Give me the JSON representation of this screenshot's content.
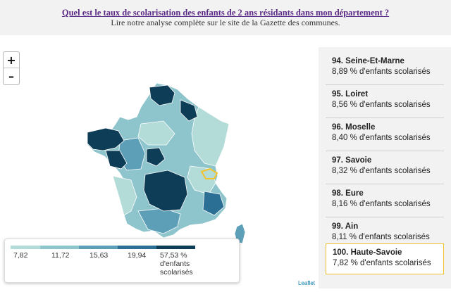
{
  "header": {
    "question": "Quel est le taux de scolarisation des enfants de 2 ans résidants dans mon département ?",
    "subtitle": "Lire notre analyse complète sur le site de la Gazette des communes."
  },
  "zoom": {
    "in_label": "+",
    "out_label": "–"
  },
  "legend": {
    "breaks": [
      "7,82",
      "11,72",
      "15,63",
      "19,94"
    ],
    "last_label": "57,53 %",
    "unit_line1": "d'enfants",
    "unit_line2": "scolarisés",
    "colors": [
      "#b3dcd8",
      "#8ec4cb",
      "#5e9fb8",
      "#2c6f94",
      "#0e3d57"
    ]
  },
  "attribution": "Leaflet",
  "ranking": [
    {
      "name": "94. Seine-Et-Marne",
      "value": "8,89 % d'enfants scolarisés",
      "active": false
    },
    {
      "name": "95. Loiret",
      "value": "8,56 % d'enfants scolarisés",
      "active": false
    },
    {
      "name": "96. Moselle",
      "value": "8,40 % d'enfants scolarisés",
      "active": false
    },
    {
      "name": "97. Savoie",
      "value": "8,32 % d'enfants scolarisés",
      "active": false
    },
    {
      "name": "98. Eure",
      "value": "8,16 % d'enfants scolarisés",
      "active": false
    },
    {
      "name": "99. Ain",
      "value": "8,11 % d'enfants scolarisés",
      "active": false
    },
    {
      "name": "100. Haute-Savoie",
      "value": "7,82 % d'enfants scolarisés",
      "active": true
    }
  ],
  "colors": {
    "highlight": "#f2c230",
    "header_link": "#5b2a86",
    "sidebar_bg": "#f2f2f2"
  }
}
